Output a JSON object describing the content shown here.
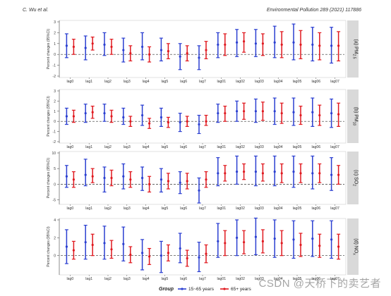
{
  "header": {
    "left": "C. Wu et al.",
    "right": "Environmental Pollution 289 (2021) 117886"
  },
  "watermark": "CSDN @天桥下的卖艺者",
  "colors": {
    "group1": "#2b3fd1",
    "group2": "#e0191f",
    "strip": "#d9d9d9",
    "zero_line": "#333333"
  },
  "chart_data": [
    {
      "type": "errorbar",
      "panel_label": "(a) PM2.5",
      "ylabel": "Percent changes (95%CI)",
      "ylim": [
        -2,
        3
      ],
      "yticks": [
        -2,
        -1,
        0,
        1,
        2,
        3
      ],
      "categories": [
        "lag0",
        "lag1",
        "lag2",
        "lag3",
        "lag4",
        "lag5",
        "lag6",
        "lag7",
        "lag01",
        "lag02",
        "lag03",
        "lag04",
        "lag05",
        "lag06",
        "lag07"
      ],
      "series": [
        {
          "name": "15~65 years",
          "mid": [
            0.8,
            0.6,
            0.9,
            0.4,
            0.7,
            0.4,
            -0.2,
            -0.3,
            0.9,
            1.1,
            1.0,
            1.1,
            1.1,
            0.9,
            0.8
          ],
          "lower": [
            -0.3,
            -0.5,
            -0.1,
            -0.7,
            -0.5,
            -0.6,
            -1.4,
            -1.4,
            -0.3,
            -0.2,
            -0.2,
            -0.3,
            -0.5,
            -0.6,
            -0.8
          ],
          "upper": [
            1.9,
            1.7,
            2.0,
            1.5,
            2.0,
            1.5,
            1.0,
            0.8,
            2.0,
            2.3,
            2.3,
            2.6,
            2.8,
            2.5,
            2.5
          ]
        },
        {
          "name": "65+ years",
          "mid": [
            0.7,
            1.0,
            0.7,
            0.1,
            0.0,
            0.3,
            0.1,
            0.4,
            0.9,
            1.2,
            1.0,
            0.9,
            0.9,
            0.8,
            0.8
          ],
          "lower": [
            0.0,
            0.4,
            0.0,
            -0.6,
            -0.7,
            -0.4,
            -0.6,
            -0.4,
            -0.1,
            0.2,
            -0.1,
            -0.3,
            -0.4,
            -0.5,
            -0.6
          ],
          "upper": [
            1.4,
            1.6,
            1.4,
            0.8,
            0.7,
            1.0,
            0.8,
            1.2,
            1.9,
            2.0,
            1.9,
            2.1,
            2.2,
            2.0,
            2.1
          ]
        }
      ]
    },
    {
      "type": "errorbar",
      "panel_label": "(b) PM10",
      "ylabel": "Percent changes (95%CI)",
      "ylim": [
        -2,
        3
      ],
      "yticks": [
        -2,
        -1,
        0,
        1,
        2,
        3
      ],
      "categories": [
        "lag0",
        "lag1",
        "lag2",
        "lag3",
        "lag4",
        "lag5",
        "lag6",
        "lag7",
        "lag01",
        "lag02",
        "lag03",
        "lag04",
        "lag05",
        "lag06",
        "lag07"
      ],
      "series": [
        {
          "name": "15~65 years",
          "mid": [
            0.5,
            0.8,
            0.8,
            0.4,
            0.6,
            0.4,
            -0.1,
            -0.3,
            0.8,
            1.0,
            1.0,
            1.0,
            0.9,
            0.9,
            0.8
          ],
          "lower": [
            -0.3,
            -0.1,
            0.0,
            -0.3,
            -0.4,
            -0.5,
            -1.0,
            -1.2,
            -0.1,
            0.0,
            -0.1,
            -0.3,
            -0.4,
            -0.5,
            -0.6
          ],
          "upper": [
            1.3,
            1.7,
            1.7,
            1.3,
            1.6,
            1.3,
            0.8,
            0.6,
            1.7,
            2.0,
            2.2,
            2.3,
            2.3,
            2.3,
            2.2
          ]
        },
        {
          "name": "65+ years",
          "mid": [
            0.5,
            0.9,
            0.5,
            0.0,
            -0.2,
            -0.1,
            0.0,
            0.0,
            0.8,
            1.0,
            1.0,
            0.8,
            0.6,
            0.6,
            0.7
          ],
          "lower": [
            -0.1,
            0.3,
            -0.1,
            -0.5,
            -0.7,
            -0.6,
            -0.5,
            -0.4,
            0.0,
            0.2,
            0.1,
            -0.2,
            -0.3,
            -0.4,
            -0.5
          ],
          "upper": [
            1.1,
            1.5,
            1.1,
            0.5,
            0.3,
            0.4,
            0.5,
            0.6,
            1.5,
            1.8,
            1.9,
            1.8,
            1.5,
            1.6,
            1.8
          ]
        }
      ]
    },
    {
      "type": "errorbar",
      "panel_label": "(c) SO2",
      "ylabel": "Percent changes (95%CI)",
      "ylim": [
        -6,
        10
      ],
      "yticks": [
        -5,
        0,
        5,
        10
      ],
      "categories": [
        "lag0",
        "lag1",
        "lag2",
        "lag3",
        "lag4",
        "lag5",
        "lag6",
        "lag7",
        "lag01",
        "lag02",
        "lag03",
        "lag04",
        "lag05",
        "lag06",
        "lag07"
      ],
      "series": [
        {
          "name": "15~65 years",
          "mid": [
            2.5,
            3.0,
            2.0,
            2.5,
            2.0,
            1.5,
            0.5,
            -2.0,
            3.5,
            4.0,
            4.0,
            4.0,
            4.0,
            3.5,
            3.0
          ],
          "lower": [
            -1.0,
            -0.5,
            -2.5,
            -1.5,
            -2.0,
            -2.5,
            -3.0,
            -6.0,
            -0.5,
            0.0,
            -0.5,
            -0.5,
            -1.0,
            -1.5,
            -2.0
          ],
          "upper": [
            6.0,
            8.0,
            5.5,
            6.5,
            5.5,
            5.0,
            4.0,
            2.0,
            8.5,
            9.0,
            9.0,
            9.0,
            9.0,
            9.0,
            8.5
          ]
        },
        {
          "name": "65+ years",
          "mid": [
            1.5,
            2.5,
            2.0,
            1.5,
            0.0,
            1.0,
            1.0,
            1.5,
            3.5,
            4.0,
            3.5,
            3.5,
            3.5,
            3.5,
            3.0
          ],
          "lower": [
            -1.0,
            0.5,
            -0.5,
            -1.0,
            -2.5,
            -1.5,
            -1.5,
            -1.0,
            1.0,
            1.5,
            1.0,
            0.5,
            0.5,
            0.5,
            0.0
          ],
          "upper": [
            4.0,
            5.0,
            4.5,
            4.0,
            2.5,
            3.5,
            3.5,
            4.0,
            6.0,
            6.5,
            6.5,
            6.5,
            6.5,
            6.5,
            6.0
          ]
        }
      ]
    },
    {
      "type": "errorbar",
      "panel_label": "(d) NOx",
      "ylabel": "Percent changes (95%CI)",
      "ylim": [
        -2,
        4
      ],
      "yticks": [
        0,
        2,
        4
      ],
      "categories": [
        "lag0",
        "lag1",
        "lag2",
        "lag3",
        "lag4",
        "lag5",
        "lag6",
        "lag7",
        "lag01",
        "lag02",
        "lag03",
        "lag04",
        "lag05",
        "lag06",
        "lag07"
      ],
      "series": [
        {
          "name": "15~65 years",
          "mid": [
            1.0,
            1.5,
            1.4,
            1.3,
            0.3,
            0.0,
            0.8,
            -0.2,
            1.6,
            2.0,
            2.1,
            1.9,
            1.8,
            1.9,
            1.8
          ],
          "lower": [
            -0.9,
            -0.4,
            -0.4,
            -0.6,
            -1.6,
            -1.9,
            -0.8,
            -1.8,
            -0.2,
            0.0,
            0.1,
            -0.2,
            -0.3,
            -0.1,
            -0.3
          ],
          "upper": [
            2.9,
            3.4,
            3.3,
            3.2,
            1.8,
            1.6,
            2.5,
            1.5,
            3.6,
            4.0,
            4.2,
            4.0,
            3.9,
            3.9,
            3.9
          ]
        },
        {
          "name": "65+ years",
          "mid": [
            0.6,
            1.2,
            0.7,
            0.1,
            -0.1,
            0.3,
            -0.3,
            0.2,
            1.4,
            1.5,
            1.6,
            1.4,
            1.2,
            1.1,
            1.0
          ],
          "lower": [
            -0.4,
            0.0,
            -0.3,
            -0.8,
            -1.0,
            -0.6,
            -1.2,
            -0.8,
            0.0,
            0.2,
            0.3,
            0.0,
            -0.1,
            -0.2,
            -0.4
          ],
          "upper": [
            1.6,
            2.4,
            1.7,
            1.0,
            0.8,
            1.2,
            0.6,
            1.2,
            2.8,
            2.8,
            2.9,
            2.8,
            2.5,
            2.4,
            2.4
          ]
        }
      ]
    }
  ],
  "legend": {
    "title": "Group",
    "placement": "bottom",
    "items": [
      {
        "label": "15~65 years",
        "color": "#2b3fd1"
      },
      {
        "label": "65+ years",
        "color": "#e0191f"
      }
    ]
  }
}
